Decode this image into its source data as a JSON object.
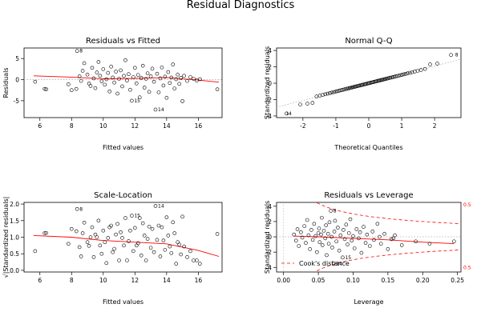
{
  "title": "Residual Diagnostics",
  "colors": {
    "points": "#000000",
    "smooth": "#ff0000",
    "reference": "#b0b0b0",
    "cooks": "#ff0000"
  },
  "chart_data": [
    {
      "type": "scatter",
      "title": "Residuals vs Fitted",
      "xlabel": "Fitted values",
      "ylabel": "Residuals",
      "xlim": [
        5.0,
        17.5
      ],
      "ylim": [
        -9.0,
        7.5
      ],
      "xticks": [
        6,
        8,
        10,
        12,
        14,
        16
      ],
      "yticks": [
        -5,
        0,
        5
      ],
      "reference_line": "y=0 dotted",
      "point_labels": [
        {
          "text": "8",
          "x": 8.35,
          "y": 6.8
        },
        {
          "text": "15",
          "x": 11.8,
          "y": -5.0
        },
        {
          "text": "14",
          "x": 13.3,
          "y": -7.1
        }
      ],
      "smooth": [
        [
          5.6,
          0.9
        ],
        [
          8.0,
          0.6
        ],
        [
          10.0,
          0.2
        ],
        [
          12.0,
          0.3
        ],
        [
          14.0,
          0.5
        ],
        [
          16.0,
          -0.1
        ],
        [
          17.3,
          -0.6
        ]
      ],
      "points": [
        [
          5.7,
          -0.5
        ],
        [
          6.3,
          -2.2
        ],
        [
          6.4,
          -2.3
        ],
        [
          7.8,
          -1.1
        ],
        [
          8.0,
          -2.5
        ],
        [
          8.3,
          -2.2
        ],
        [
          8.35,
          6.8
        ],
        [
          8.5,
          0.8
        ],
        [
          8.6,
          -0.3
        ],
        [
          8.7,
          2.1
        ],
        [
          8.8,
          3.9
        ],
        [
          9.0,
          1.2
        ],
        [
          9.1,
          -0.9
        ],
        [
          9.2,
          -1.5
        ],
        [
          9.3,
          2.8
        ],
        [
          9.4,
          0.3
        ],
        [
          9.5,
          -2.0
        ],
        [
          9.6,
          1.7
        ],
        [
          9.7,
          4.2
        ],
        [
          9.8,
          0.9
        ],
        [
          9.9,
          -0.4
        ],
        [
          10.0,
          2.5
        ],
        [
          10.1,
          -1.2
        ],
        [
          10.2,
          0.1
        ],
        [
          10.3,
          1.6
        ],
        [
          10.4,
          -2.8
        ],
        [
          10.5,
          3.1
        ],
        [
          10.6,
          0.5
        ],
        [
          10.7,
          -0.7
        ],
        [
          10.8,
          1.9
        ],
        [
          10.9,
          -3.3
        ],
        [
          11.0,
          0.2
        ],
        [
          11.1,
          2.2
        ],
        [
          11.2,
          -1.6
        ],
        [
          11.3,
          0.9
        ],
        [
          11.4,
          4.6
        ],
        [
          11.5,
          -0.2
        ],
        [
          11.6,
          1.3
        ],
        [
          11.7,
          -2.4
        ],
        [
          11.8,
          -5.0
        ],
        [
          11.9,
          0.6
        ],
        [
          12.0,
          2.8
        ],
        [
          12.1,
          -0.9
        ],
        [
          12.2,
          1.1
        ],
        [
          12.3,
          -4.2
        ],
        [
          12.4,
          0.4
        ],
        [
          12.5,
          3.3
        ],
        [
          12.6,
          -1.9
        ],
        [
          12.7,
          0.2
        ],
        [
          12.8,
          1.5
        ],
        [
          12.9,
          -2.9
        ],
        [
          13.0,
          0.8
        ],
        [
          13.1,
          2.6
        ],
        [
          13.2,
          -0.5
        ],
        [
          13.3,
          -7.1
        ],
        [
          13.4,
          1.4
        ],
        [
          13.5,
          -3.0
        ],
        [
          13.6,
          0.3
        ],
        [
          13.7,
          2.9
        ],
        [
          13.8,
          -1.4
        ],
        [
          13.9,
          0.7
        ],
        [
          14.0,
          -4.3
        ],
        [
          14.1,
          1.8
        ],
        [
          14.2,
          -0.8
        ],
        [
          14.3,
          0.5
        ],
        [
          14.4,
          3.6
        ],
        [
          14.5,
          -2.1
        ],
        [
          14.6,
          0.1
        ],
        [
          14.7,
          1.2
        ],
        [
          14.8,
          -1.0
        ],
        [
          14.9,
          0.4
        ],
        [
          15.0,
          -5.1
        ],
        [
          15.1,
          0.9
        ],
        [
          15.3,
          -0.3
        ],
        [
          15.5,
          0.6
        ],
        [
          15.7,
          0.2
        ],
        [
          15.9,
          -0.2
        ],
        [
          16.1,
          0.1
        ],
        [
          17.2,
          -2.3
        ]
      ]
    },
    {
      "type": "scatter",
      "title": "Normal Q-Q",
      "xlabel": "Theoretical Quantiles",
      "ylabel": "Standardized residuals",
      "xlim": [
        -2.8,
        2.8
      ],
      "ylim": [
        -4.2,
        4.3
      ],
      "xticks": [
        -2,
        -1,
        0,
        1,
        2
      ],
      "yticks": [
        -4,
        -2,
        0,
        2,
        4
      ],
      "reference_line": "qq dotted",
      "point_labels": [
        {
          "text": "8",
          "x": 2.55,
          "y": 3.45
        },
        {
          "text": "14",
          "x": -2.6,
          "y": -3.7
        }
      ],
      "quantile_curve": {
        "n": 80,
        "extremes_low": [
          -3.7,
          -2.6,
          -2.5,
          -2.4
        ],
        "extremes_high": [
          2.3,
          2.4,
          3.45
        ]
      }
    },
    {
      "type": "scatter",
      "title": "Scale-Location",
      "xlabel": "Fitted values",
      "ylabel": "√|Standardized residuals|",
      "xlim": [
        5.0,
        17.5
      ],
      "ylim": [
        -0.05,
        2.05
      ],
      "xticks": [
        6,
        8,
        10,
        12,
        14,
        16
      ],
      "yticks": [
        0.0,
        0.5,
        1.0,
        1.5,
        2.0
      ],
      "point_labels": [
        {
          "text": "8",
          "x": 8.35,
          "y": 1.85
        },
        {
          "text": "15",
          "x": 11.8,
          "y": 1.65
        },
        {
          "text": "14",
          "x": 13.3,
          "y": 1.94
        }
      ],
      "smooth": [
        [
          5.6,
          1.05
        ],
        [
          8.0,
          1.0
        ],
        [
          10.0,
          0.9
        ],
        [
          12.0,
          0.85
        ],
        [
          14.0,
          0.8
        ],
        [
          16.0,
          0.6
        ],
        [
          17.3,
          0.42
        ]
      ],
      "points": [
        [
          5.7,
          0.58
        ],
        [
          6.3,
          1.12
        ],
        [
          6.4,
          1.13
        ],
        [
          7.8,
          0.8
        ],
        [
          8.0,
          1.25
        ],
        [
          8.3,
          1.18
        ],
        [
          8.35,
          1.85
        ],
        [
          8.5,
          0.7
        ],
        [
          8.6,
          0.42
        ],
        [
          8.7,
          1.12
        ],
        [
          8.8,
          1.44
        ],
        [
          9.0,
          0.85
        ],
        [
          9.1,
          0.74
        ],
        [
          9.2,
          1.0
        ],
        [
          9.3,
          1.3
        ],
        [
          9.4,
          0.4
        ],
        [
          9.5,
          1.08
        ],
        [
          9.6,
          1.0
        ],
        [
          9.7,
          1.5
        ],
        [
          9.8,
          0.75
        ],
        [
          9.9,
          0.5
        ],
        [
          10.0,
          1.2
        ],
        [
          10.1,
          0.85
        ],
        [
          10.2,
          0.22
        ],
        [
          10.3,
          0.98
        ],
        [
          10.4,
          1.3
        ],
        [
          10.5,
          1.35
        ],
        [
          10.6,
          0.55
        ],
        [
          10.7,
          0.65
        ],
        [
          10.8,
          1.08
        ],
        [
          10.9,
          1.4
        ],
        [
          11.0,
          0.3
        ],
        [
          11.1,
          1.15
        ],
        [
          11.2,
          0.98
        ],
        [
          11.3,
          0.75
        ],
        [
          11.4,
          1.58
        ],
        [
          11.5,
          0.3
        ],
        [
          11.6,
          0.88
        ],
        [
          11.7,
          1.2
        ],
        [
          11.8,
          1.65
        ],
        [
          11.9,
          0.58
        ],
        [
          12.0,
          1.28
        ],
        [
          12.1,
          0.75
        ],
        [
          12.2,
          0.82
        ],
        [
          12.3,
          1.58
        ],
        [
          12.4,
          0.45
        ],
        [
          12.5,
          1.42
        ],
        [
          12.6,
          1.05
        ],
        [
          12.7,
          0.3
        ],
        [
          12.8,
          0.95
        ],
        [
          12.9,
          1.32
        ],
        [
          13.0,
          0.68
        ],
        [
          13.1,
          1.25
        ],
        [
          13.2,
          0.55
        ],
        [
          13.3,
          1.94
        ],
        [
          13.4,
          0.92
        ],
        [
          13.5,
          1.35
        ],
        [
          13.6,
          0.42
        ],
        [
          13.7,
          1.3
        ],
        [
          13.8,
          0.9
        ],
        [
          13.9,
          0.62
        ],
        [
          14.0,
          1.6
        ],
        [
          14.1,
          1.05
        ],
        [
          14.2,
          0.72
        ],
        [
          14.3,
          0.52
        ],
        [
          14.4,
          1.45
        ],
        [
          14.5,
          1.12
        ],
        [
          14.6,
          0.2
        ],
        [
          14.7,
          0.85
        ],
        [
          14.8,
          0.78
        ],
        [
          14.9,
          0.48
        ],
        [
          15.0,
          1.62
        ],
        [
          15.1,
          0.72
        ],
        [
          15.3,
          0.4
        ],
        [
          15.5,
          0.58
        ],
        [
          15.7,
          0.3
        ],
        [
          15.9,
          0.3
        ],
        [
          16.1,
          0.2
        ],
        [
          17.2,
          1.1
        ]
      ]
    },
    {
      "type": "scatter",
      "title": "Residuals vs Leverage",
      "xlabel": "Leverage",
      "ylabel": "Standardized residuals",
      "xlim": [
        -0.01,
        0.255
      ],
      "ylim": [
        -4.6,
        4.5
      ],
      "xticks": [
        0.0,
        0.05,
        0.1,
        0.15,
        0.2,
        0.25
      ],
      "yticks": [
        -4,
        -2,
        0,
        2,
        4
      ],
      "legend": "Cook's distance",
      "legend_position": "bottom-left",
      "cooks_labels": [
        {
          "text": "0.5",
          "y": 4.2
        },
        {
          "text": "0.5",
          "y": -4.0
        }
      ],
      "point_labels": [
        {
          "text": "8",
          "x": 0.068,
          "y": 3.4
        },
        {
          "text": "15",
          "x": 0.085,
          "y": -2.7
        },
        {
          "text": "14",
          "x": 0.072,
          "y": -3.5
        }
      ],
      "smooth": [
        [
          0.015,
          0.1
        ],
        [
          0.05,
          0.0
        ],
        [
          0.1,
          -0.2
        ],
        [
          0.15,
          -0.4
        ],
        [
          0.2,
          -0.7
        ],
        [
          0.245,
          -0.9
        ]
      ],
      "points": [
        [
          0.015,
          0.3
        ],
        [
          0.018,
          -0.5
        ],
        [
          0.02,
          1.0
        ],
        [
          0.022,
          -1.2
        ],
        [
          0.025,
          0.6
        ],
        [
          0.027,
          -0.1
        ],
        [
          0.03,
          1.4
        ],
        [
          0.032,
          -0.8
        ],
        [
          0.034,
          2.2
        ],
        [
          0.036,
          0.2
        ],
        [
          0.038,
          -1.6
        ],
        [
          0.04,
          0.9
        ],
        [
          0.042,
          -0.4
        ],
        [
          0.044,
          1.7
        ],
        [
          0.046,
          0.1
        ],
        [
          0.048,
          -2.0
        ],
        [
          0.05,
          0.5
        ],
        [
          0.051,
          1.1
        ],
        [
          0.052,
          -0.7
        ],
        [
          0.054,
          0.3
        ],
        [
          0.055,
          2.5
        ],
        [
          0.056,
          -1.1
        ],
        [
          0.058,
          0.8
        ],
        [
          0.06,
          -0.2
        ],
        [
          0.061,
          1.5
        ],
        [
          0.062,
          -2.4
        ],
        [
          0.064,
          0.4
        ],
        [
          0.065,
          -0.9
        ],
        [
          0.066,
          1.9
        ],
        [
          0.068,
          3.4
        ],
        [
          0.069,
          0.0
        ],
        [
          0.07,
          -1.4
        ],
        [
          0.072,
          -3.5
        ],
        [
          0.073,
          0.7
        ],
        [
          0.074,
          2.1
        ],
        [
          0.076,
          -0.6
        ],
        [
          0.078,
          1.2
        ],
        [
          0.08,
          -1.8
        ],
        [
          0.082,
          0.2
        ],
        [
          0.085,
          -2.7
        ],
        [
          0.086,
          0.9
        ],
        [
          0.088,
          -0.3
        ],
        [
          0.09,
          1.6
        ],
        [
          0.092,
          -1.0
        ],
        [
          0.094,
          0.5
        ],
        [
          0.096,
          2.3
        ],
        [
          0.098,
          -0.5
        ],
        [
          0.1,
          0.1
        ],
        [
          0.102,
          -1.5
        ],
        [
          0.105,
          1.0
        ],
        [
          0.108,
          -0.2
        ],
        [
          0.11,
          0.6
        ],
        [
          0.112,
          -2.1
        ],
        [
          0.115,
          1.3
        ],
        [
          0.118,
          -0.8
        ],
        [
          0.12,
          0.3
        ],
        [
          0.124,
          -1.2
        ],
        [
          0.128,
          0.7
        ],
        [
          0.13,
          -0.4
        ],
        [
          0.135,
          1.7
        ],
        [
          0.138,
          0.0
        ],
        [
          0.14,
          -0.9
        ],
        [
          0.145,
          0.4
        ],
        [
          0.15,
          -1.6
        ],
        [
          0.155,
          -0.3
        ],
        [
          0.158,
          -0.2
        ],
        [
          0.16,
          0.2
        ],
        [
          0.17,
          -1.1
        ],
        [
          0.19,
          -0.6
        ],
        [
          0.21,
          -0.9
        ],
        [
          0.245,
          -0.6
        ]
      ]
    }
  ]
}
